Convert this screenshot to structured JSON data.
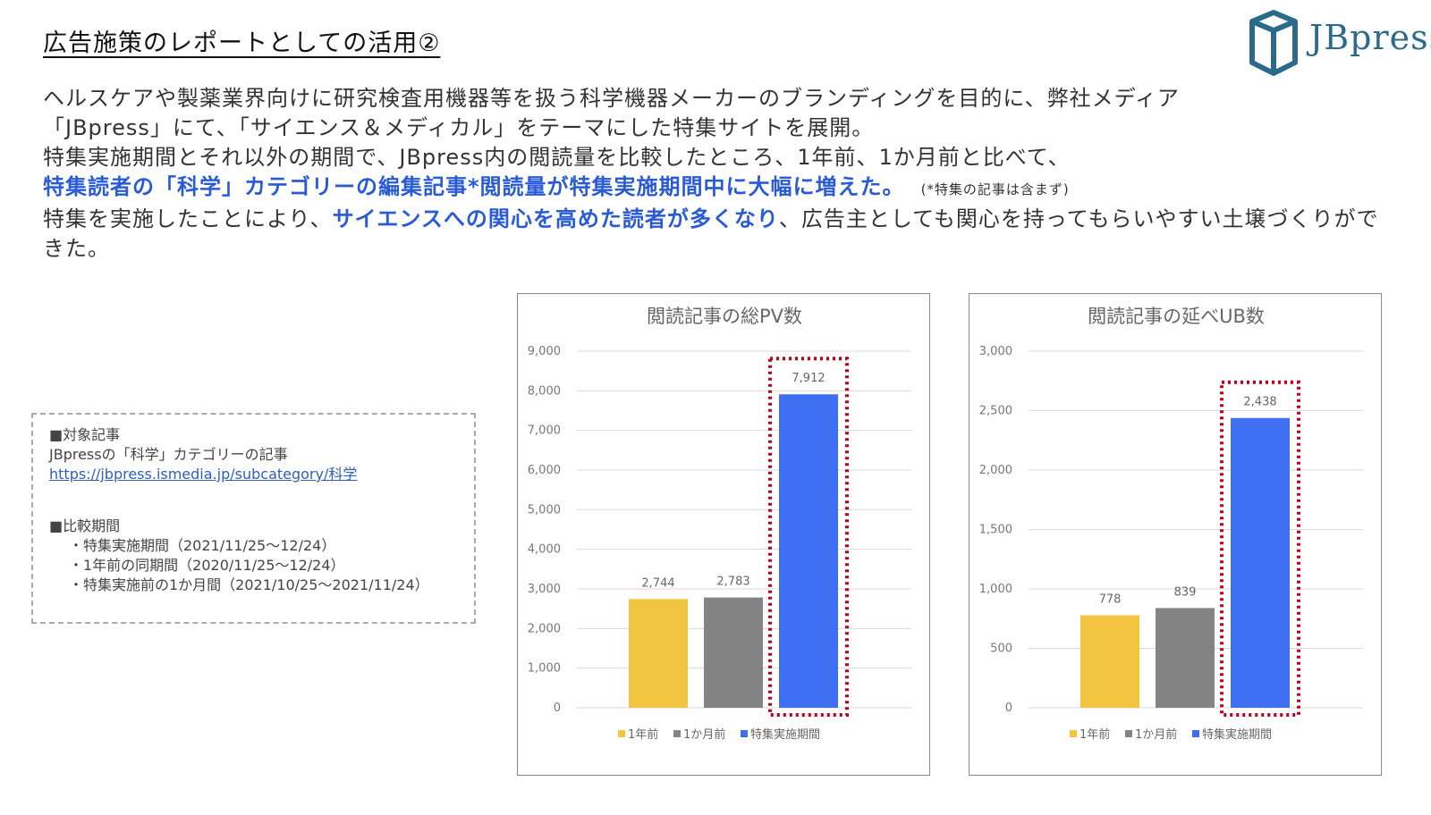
{
  "header": {
    "title": "広告施策のレポートとしての活用②",
    "logo_text": "JBpress"
  },
  "body": {
    "line1": "ヘルスケアや製薬業界向けに研究検査用機器等を扱う科学機器メーカーのブランディングを目的に、弊社メディア",
    "line2": "「JBpress」にて、「サイエンス＆メディカル」をテーマにした特集サイトを展開。",
    "line3": "特集実施期間とそれ以外の期間で、JBpress内の閲読量を比較したところ、1年前、1か月前と比べて、",
    "line4_highlight": "特集読者の「科学」カテゴリーの編集記事*閲読量が特集実施期間中に大幅に増えた。",
    "line4_note": "(*特集の記事は含まず)",
    "line5_pre": "特集を実施したことにより、",
    "line5_highlight": "サイエンスへの関心を高めた読者が多くなり",
    "line5_post": "、広告主としても関心を持ってもらいやすい土壌づくりができた。"
  },
  "info_box": {
    "heading1": "■対象記事",
    "article_desc": "JBpressの「科学」カテゴリーの記事",
    "url": "https://jbpress.ismedia.jp/subcategory/科学",
    "heading2": "■比較期間",
    "periods": [
      "・特集実施期間（2021/11/25～12/24）",
      "・1年前の同期間（2020/11/25～12/24）",
      "・特集実施前の1か月間（2021/10/25～2021/11/24）"
    ]
  },
  "colors": {
    "year_ago": "#f2c440",
    "month_ago": "#848484",
    "campaign": "#3d6ff0",
    "highlight_box": "#c0001a"
  },
  "chart_data": [
    {
      "type": "bar",
      "title": "閲読記事の総PV数",
      "categories": [
        "1年前",
        "1か月前",
        "特集実施期間"
      ],
      "values": [
        2744,
        2783,
        7912
      ],
      "value_labels": [
        "2,744",
        "2,783",
        "7,912"
      ],
      "ylim": [
        0,
        9000
      ],
      "yticks": [
        "0",
        "1,000",
        "2,000",
        "3,000",
        "4,000",
        "5,000",
        "6,000",
        "7,000",
        "8,000",
        "9,000"
      ],
      "grid": true,
      "legend": "bottom",
      "highlighted_category": "特集実施期間"
    },
    {
      "type": "bar",
      "title": "閲読記事の延べUB数",
      "categories": [
        "1年前",
        "1か月前",
        "特集実施期間"
      ],
      "values": [
        778,
        839,
        2438
      ],
      "value_labels": [
        "778",
        "839",
        "2,438"
      ],
      "ylim": [
        0,
        3000
      ],
      "yticks": [
        "0",
        "500",
        "1,000",
        "1,500",
        "2,000",
        "2,500",
        "3,000"
      ],
      "grid": true,
      "legend": "bottom",
      "highlighted_category": "特集実施期間"
    }
  ]
}
